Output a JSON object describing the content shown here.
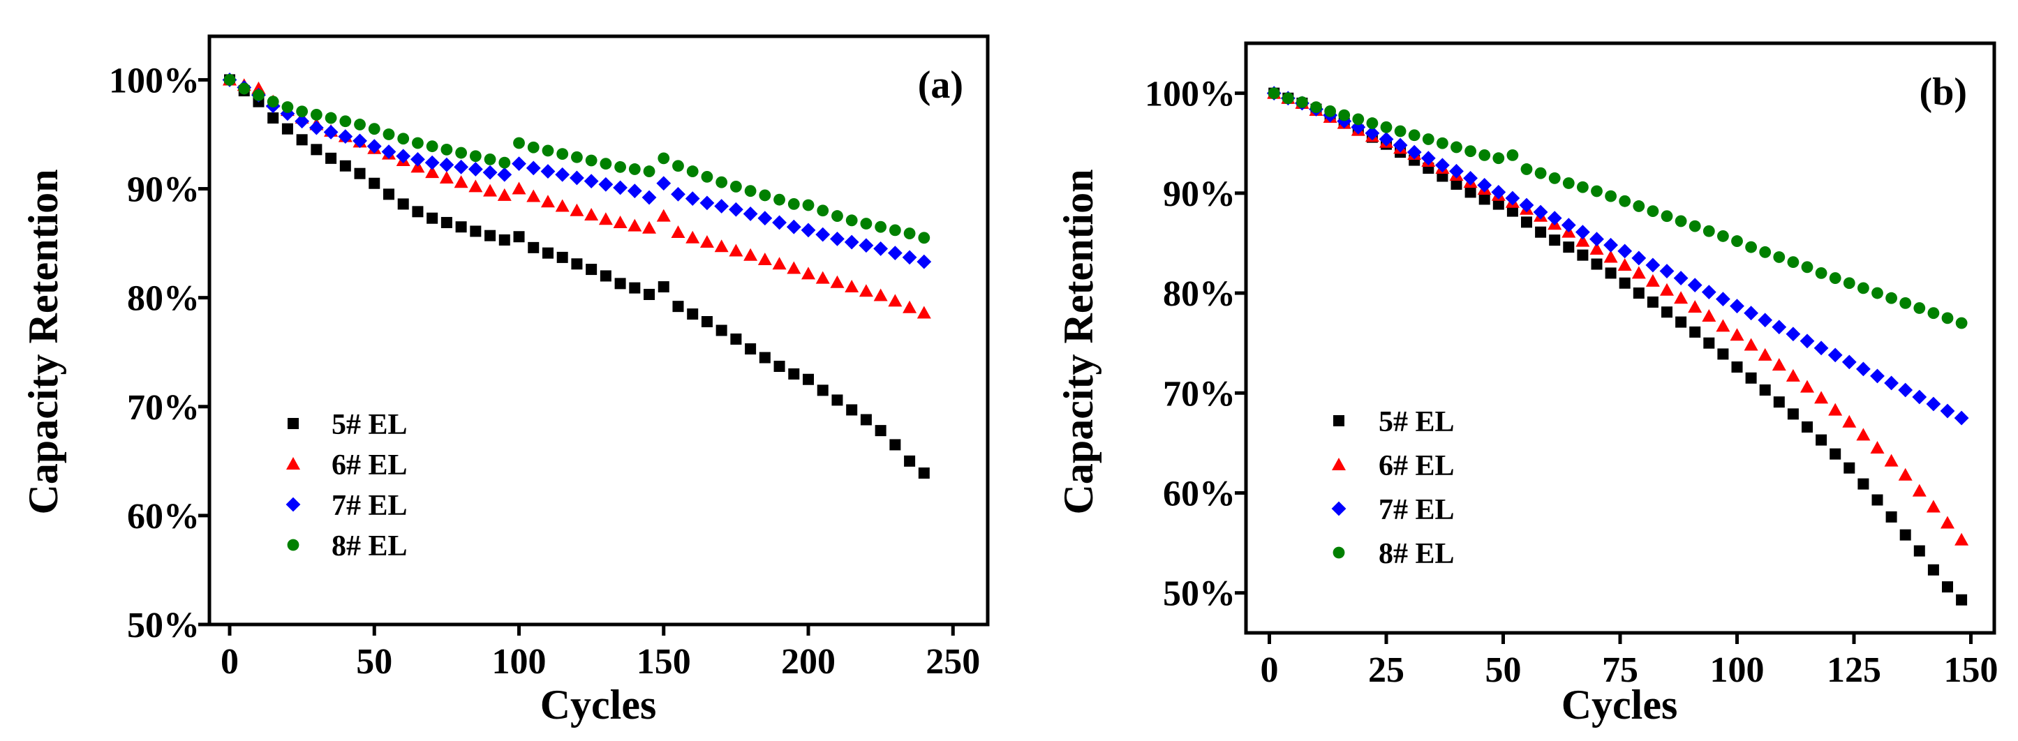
{
  "chart_data": [
    {
      "type": "scatter",
      "panel_label": "(a)",
      "xlabel": "Cycles",
      "ylabel": "Capacity Retention",
      "xlim": [
        -7,
        262
      ],
      "ylim": [
        50,
        104
      ],
      "x_ticks": [
        0,
        50,
        100,
        150,
        200,
        250
      ],
      "x_tick_labels": [
        "0",
        "50",
        "100",
        "150",
        "200",
        "250"
      ],
      "y_ticks": [
        50,
        60,
        70,
        80,
        90,
        100
      ],
      "y_tick_labels": [
        "50%",
        "60%",
        "70%",
        "80%",
        "90%",
        "100%"
      ],
      "legend_position": "bottom-left",
      "series": [
        {
          "name": "5# EL",
          "marker": "square",
          "color": "#000000",
          "x": [
            0,
            5,
            10,
            15,
            20,
            25,
            30,
            35,
            40,
            45,
            50,
            55,
            60,
            65,
            70,
            75,
            80,
            85,
            90,
            95,
            100,
            105,
            110,
            115,
            120,
            125,
            130,
            135,
            140,
            145,
            150,
            155,
            160,
            165,
            170,
            175,
            180,
            185,
            190,
            195,
            200,
            205,
            210,
            215,
            220,
            225,
            230,
            235,
            240
          ],
          "y": [
            100,
            99,
            98,
            96.5,
            95.5,
            94.5,
            93.6,
            92.8,
            92.1,
            91.4,
            90.5,
            89.5,
            88.6,
            87.9,
            87.3,
            86.9,
            86.5,
            86.1,
            85.7,
            85.3,
            85.6,
            84.6,
            84.1,
            83.7,
            83.1,
            82.6,
            82,
            81.3,
            80.9,
            80.3,
            81,
            79.2,
            78.5,
            77.8,
            77,
            76.2,
            75.3,
            74.5,
            73.7,
            73,
            72.5,
            71.5,
            70.6,
            69.7,
            68.8,
            67.8,
            66.5,
            65,
            63.9
          ]
        },
        {
          "name": "6# EL",
          "marker": "triangle",
          "color": "#ff0000",
          "x": [
            0,
            5,
            10,
            15,
            20,
            25,
            30,
            35,
            40,
            45,
            50,
            55,
            60,
            65,
            70,
            75,
            80,
            85,
            90,
            95,
            100,
            105,
            110,
            115,
            120,
            125,
            130,
            135,
            140,
            145,
            150,
            155,
            160,
            165,
            170,
            175,
            180,
            185,
            190,
            195,
            200,
            205,
            210,
            215,
            220,
            225,
            230,
            235,
            240
          ],
          "y": [
            100,
            99.5,
            99.2,
            98,
            97.2,
            96.5,
            95.9,
            95.3,
            94.8,
            94.3,
            93.7,
            93.2,
            92.6,
            92,
            91.5,
            91,
            90.6,
            90.2,
            89.8,
            89.4,
            90,
            89.3,
            88.8,
            88.4,
            88,
            87.6,
            87.2,
            86.9,
            86.6,
            86.4,
            87.5,
            86,
            85.5,
            85.1,
            84.7,
            84.3,
            83.9,
            83.5,
            83.1,
            82.7,
            82.2,
            81.8,
            81.4,
            81,
            80.6,
            80.2,
            79.7,
            79.1,
            78.6
          ]
        },
        {
          "name": "7# EL",
          "marker": "diamond",
          "color": "#0000ff",
          "x": [
            0,
            5,
            10,
            15,
            20,
            25,
            30,
            35,
            40,
            45,
            50,
            55,
            60,
            65,
            70,
            75,
            80,
            85,
            90,
            95,
            100,
            105,
            110,
            115,
            120,
            125,
            130,
            135,
            140,
            145,
            150,
            155,
            160,
            165,
            170,
            175,
            180,
            185,
            190,
            195,
            200,
            205,
            210,
            215,
            220,
            225,
            230,
            235,
            240
          ],
          "y": [
            100,
            99.3,
            98.6,
            97.6,
            96.9,
            96.2,
            95.6,
            95.2,
            94.8,
            94.4,
            93.9,
            93.4,
            93,
            92.7,
            92.4,
            92.2,
            92,
            91.8,
            91.5,
            91.3,
            92.3,
            91.9,
            91.6,
            91.3,
            91,
            90.7,
            90.4,
            90.1,
            89.8,
            89.2,
            90.5,
            89.5,
            89.1,
            88.7,
            88.4,
            88.1,
            87.7,
            87.3,
            86.9,
            86.5,
            86.2,
            85.8,
            85.4,
            85.1,
            84.8,
            84.5,
            84.1,
            83.7,
            83.3
          ]
        },
        {
          "name": "8# EL",
          "marker": "circle",
          "color": "#008000",
          "x": [
            0,
            5,
            10,
            15,
            20,
            25,
            30,
            35,
            40,
            45,
            50,
            55,
            60,
            65,
            70,
            75,
            80,
            85,
            90,
            95,
            100,
            105,
            110,
            115,
            120,
            125,
            130,
            135,
            140,
            145,
            150,
            155,
            160,
            165,
            170,
            175,
            180,
            185,
            190,
            195,
            200,
            205,
            210,
            215,
            220,
            225,
            230,
            235,
            240
          ],
          "y": [
            100,
            99.2,
            98.6,
            98,
            97.5,
            97.1,
            96.8,
            96.5,
            96.2,
            95.9,
            95.5,
            95,
            94.6,
            94.2,
            93.9,
            93.6,
            93.3,
            93,
            92.7,
            92.4,
            94.2,
            93.8,
            93.5,
            93.2,
            92.9,
            92.6,
            92.3,
            92,
            91.8,
            91.6,
            92.8,
            92.1,
            91.6,
            91.1,
            90.6,
            90.2,
            89.8,
            89.4,
            89,
            88.6,
            88.5,
            88,
            87.5,
            87.1,
            86.8,
            86.5,
            86.2,
            85.9,
            85.5
          ]
        }
      ]
    },
    {
      "type": "scatter",
      "panel_label": "(b)",
      "xlabel": "Cycles",
      "ylabel": "Capacity Retention",
      "xlim": [
        -5,
        155
      ],
      "ylim": [
        46,
        105
      ],
      "x_ticks": [
        0,
        25,
        50,
        75,
        100,
        125,
        150
      ],
      "x_tick_labels": [
        "0",
        "25",
        "50",
        "75",
        "100",
        "125",
        "150"
      ],
      "y_ticks": [
        50,
        60,
        70,
        80,
        90,
        100
      ],
      "y_tick_labels": [
        "50%",
        "60%",
        "70%",
        "80%",
        "90%",
        "100%"
      ],
      "legend_position": "bottom-left",
      "series": [
        {
          "name": "5# EL",
          "marker": "square",
          "color": "#000000",
          "x": [
            1,
            4,
            7,
            10,
            13,
            16,
            19,
            22,
            25,
            28,
            31,
            34,
            37,
            40,
            43,
            46,
            49,
            52,
            55,
            58,
            61,
            64,
            67,
            70,
            73,
            76,
            79,
            82,
            85,
            88,
            91,
            94,
            97,
            100,
            103,
            106,
            109,
            112,
            115,
            118,
            121,
            124,
            127,
            130,
            133,
            136,
            139,
            142,
            145,
            148
          ],
          "y": [
            100,
            99.5,
            99,
            98.4,
            97.7,
            97,
            96.3,
            95.6,
            94.9,
            94.1,
            93.3,
            92.5,
            91.7,
            90.9,
            90.1,
            89.4,
            88.9,
            88.2,
            87.1,
            86.1,
            85.3,
            84.6,
            83.8,
            82.9,
            82,
            81,
            80,
            79.1,
            78.1,
            77.1,
            76.1,
            75,
            73.9,
            72.6,
            71.5,
            70.3,
            69.1,
            67.9,
            66.6,
            65.3,
            63.9,
            62.5,
            60.9,
            59.3,
            57.6,
            55.8,
            54.2,
            52.3,
            50.6,
            49.3
          ]
        },
        {
          "name": "6# EL",
          "marker": "triangle",
          "color": "#ff0000",
          "x": [
            1,
            4,
            7,
            10,
            13,
            16,
            19,
            22,
            25,
            28,
            31,
            34,
            37,
            40,
            43,
            46,
            49,
            52,
            55,
            58,
            61,
            64,
            67,
            70,
            73,
            76,
            79,
            82,
            85,
            88,
            91,
            94,
            97,
            100,
            103,
            106,
            109,
            112,
            115,
            118,
            121,
            124,
            127,
            130,
            133,
            136,
            139,
            142,
            145,
            148
          ],
          "y": [
            100,
            99.5,
            99,
            98.3,
            97.6,
            97,
            96.3,
            95.7,
            95.1,
            94.5,
            93.9,
            93.2,
            92.5,
            91.8,
            91.1,
            90.4,
            89.8,
            89.1,
            88.4,
            87.7,
            86.9,
            86.1,
            85.2,
            84.4,
            83.6,
            82.8,
            82,
            81.2,
            80.3,
            79.5,
            78.6,
            77.7,
            76.7,
            75.8,
            74.8,
            73.8,
            72.8,
            71.7,
            70.6,
            69.5,
            68.3,
            67.1,
            65.8,
            64.5,
            63.2,
            61.8,
            60.2,
            58.6,
            57,
            55.3
          ]
        },
        {
          "name": "7# EL",
          "marker": "diamond",
          "color": "#0000ff",
          "x": [
            1,
            4,
            7,
            10,
            13,
            16,
            19,
            22,
            25,
            28,
            31,
            34,
            37,
            40,
            43,
            46,
            49,
            52,
            55,
            58,
            61,
            64,
            67,
            70,
            73,
            76,
            79,
            82,
            85,
            88,
            91,
            94,
            97,
            100,
            103,
            106,
            109,
            112,
            115,
            118,
            121,
            124,
            127,
            130,
            133,
            136,
            139,
            142,
            145,
            148
          ],
          "y": [
            100,
            99.5,
            99,
            98.4,
            97.8,
            97.2,
            96.6,
            96,
            95.4,
            94.8,
            94.1,
            93.5,
            92.8,
            92.2,
            91.5,
            90.8,
            90.1,
            89.5,
            88.8,
            88.1,
            87.5,
            86.8,
            86.1,
            85.4,
            84.8,
            84.2,
            83.5,
            82.8,
            82.2,
            81.5,
            80.8,
            80.1,
            79.4,
            78.7,
            78,
            77.3,
            76.6,
            75.9,
            75.2,
            74.5,
            73.8,
            73.1,
            72.4,
            71.7,
            71,
            70.3,
            69.6,
            68.9,
            68.2,
            67.5
          ]
        },
        {
          "name": "8# EL",
          "marker": "circle",
          "color": "#008000",
          "x": [
            1,
            4,
            7,
            10,
            13,
            16,
            19,
            22,
            25,
            28,
            31,
            34,
            37,
            40,
            43,
            46,
            49,
            52,
            55,
            58,
            61,
            64,
            67,
            70,
            73,
            76,
            79,
            82,
            85,
            88,
            91,
            94,
            97,
            100,
            103,
            106,
            109,
            112,
            115,
            118,
            121,
            124,
            127,
            130,
            133,
            136,
            139,
            142,
            145,
            148
          ],
          "y": [
            100,
            99.5,
            99.1,
            98.6,
            98.2,
            97.8,
            97.4,
            97,
            96.6,
            96.2,
            95.8,
            95.4,
            95,
            94.6,
            94.2,
            93.8,
            93.5,
            93.8,
            92.4,
            92,
            91.5,
            91,
            90.6,
            90.2,
            89.7,
            89.2,
            88.7,
            88.2,
            87.7,
            87.2,
            86.7,
            86.2,
            85.7,
            85.2,
            84.6,
            84.1,
            83.6,
            83.1,
            82.6,
            82,
            81.5,
            81,
            80.5,
            80,
            79.5,
            79,
            78.5,
            78,
            77.5,
            77
          ]
        }
      ]
    }
  ]
}
